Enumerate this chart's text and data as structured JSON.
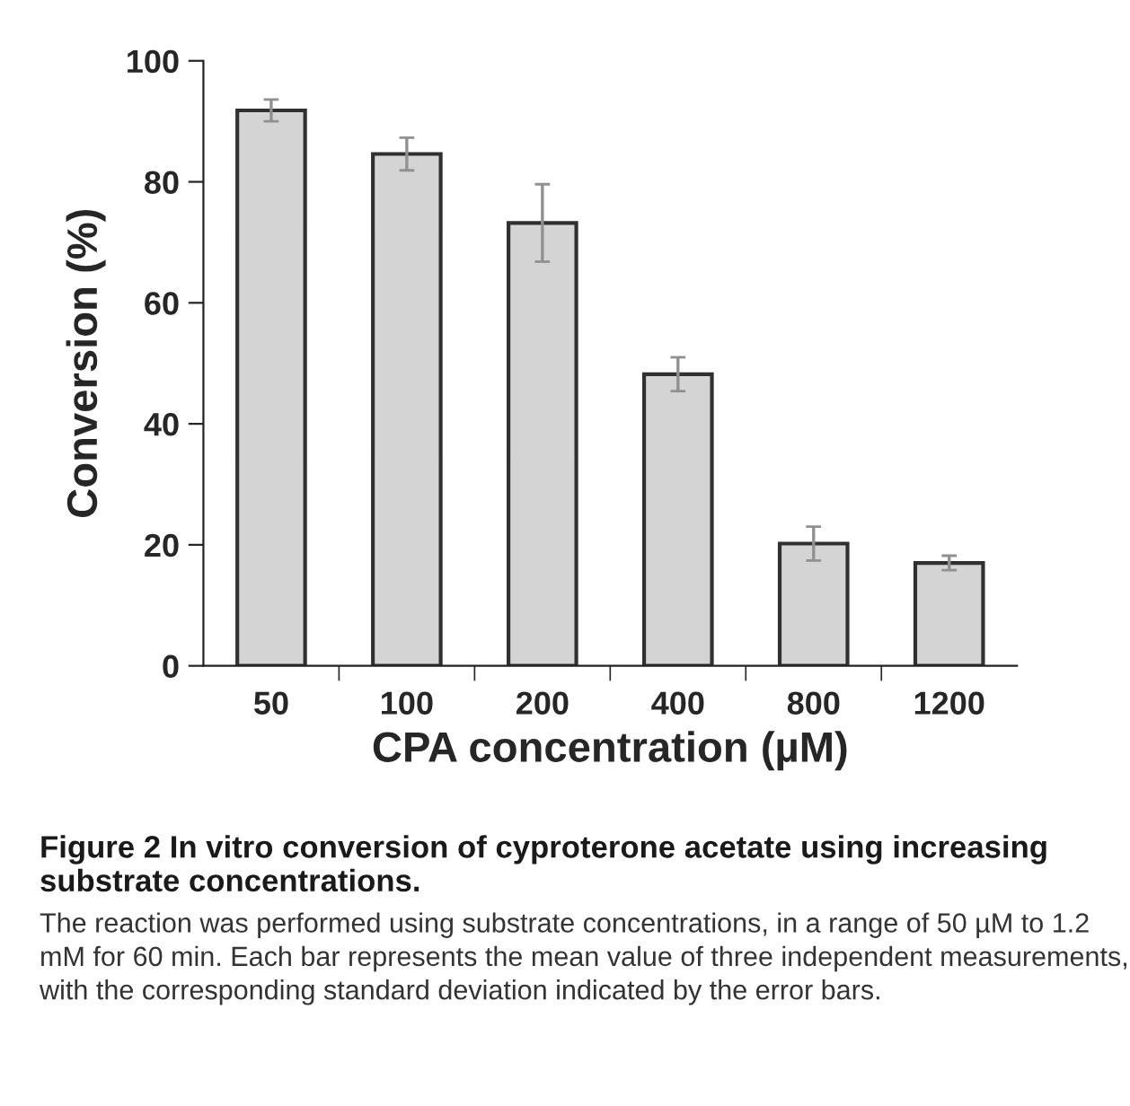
{
  "chart_data": {
    "type": "bar",
    "categories": [
      "50",
      "100",
      "200",
      "400",
      "800",
      "1200"
    ],
    "values": [
      91.8,
      84.6,
      73.2,
      48.2,
      20.2,
      17.0
    ],
    "errors": [
      1.8,
      2.7,
      6.4,
      2.8,
      2.8,
      1.2
    ],
    "color": "#d4d4d4",
    "xlabel": "CPA concentration (µM)",
    "ylabel": "Conversion (%)",
    "ylim": [
      0,
      100
    ],
    "yticks": [
      0,
      20,
      40,
      60,
      80,
      100
    ],
    "grid": false,
    "annotations": [
      "Figure 2 In vitro conversion of cyproterone acetate using increasing substrate concentrations.",
      "The reaction was performed using substrate concentrations, in a range of 50 µM to 1.2 mM for 60 min. Each bar represents the mean value of three independent measurements, with the corresponding standard deviation indicated by the error bars."
    ]
  }
}
